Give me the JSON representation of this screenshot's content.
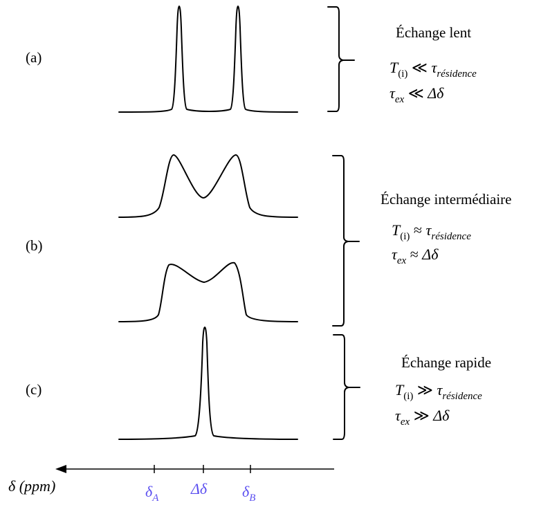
{
  "panels": [
    {
      "label": "(a)",
      "regime": "Échange lent",
      "relation_symbol": "≪",
      "eq1": {
        "left": "T",
        "left_sub": "(i)",
        "right": "τ",
        "right_sub": "résidence"
      },
      "eq2": {
        "left": "τ",
        "left_sub": "ex",
        "right": "Δδ"
      }
    },
    {
      "label": "(b)",
      "regime": "Échange intermédiaire",
      "relation_symbol": "≈",
      "eq1": {
        "left": "T",
        "left_sub": "(i)",
        "right": "τ",
        "right_sub": "résidence"
      },
      "eq2": {
        "left": "τ",
        "left_sub": "ex",
        "right": "Δδ"
      }
    },
    {
      "label": "(c)",
      "regime": "Échange rapide",
      "relation_symbol": "≫",
      "eq1": {
        "left": "T",
        "left_sub": "(i)",
        "right": "τ",
        "right_sub": "résidence"
      },
      "eq2": {
        "left": "τ",
        "left_sub": "ex",
        "right": "Δδ"
      }
    }
  ],
  "axis": {
    "label": "δ (ppm)",
    "ticks": [
      {
        "main": "δ",
        "sub": "A"
      },
      {
        "main": "Δδ",
        "sub": ""
      },
      {
        "main": "δ",
        "sub": "B"
      }
    ]
  },
  "colors": {
    "line": "#000000",
    "tick_label": "#5b4ff0"
  }
}
